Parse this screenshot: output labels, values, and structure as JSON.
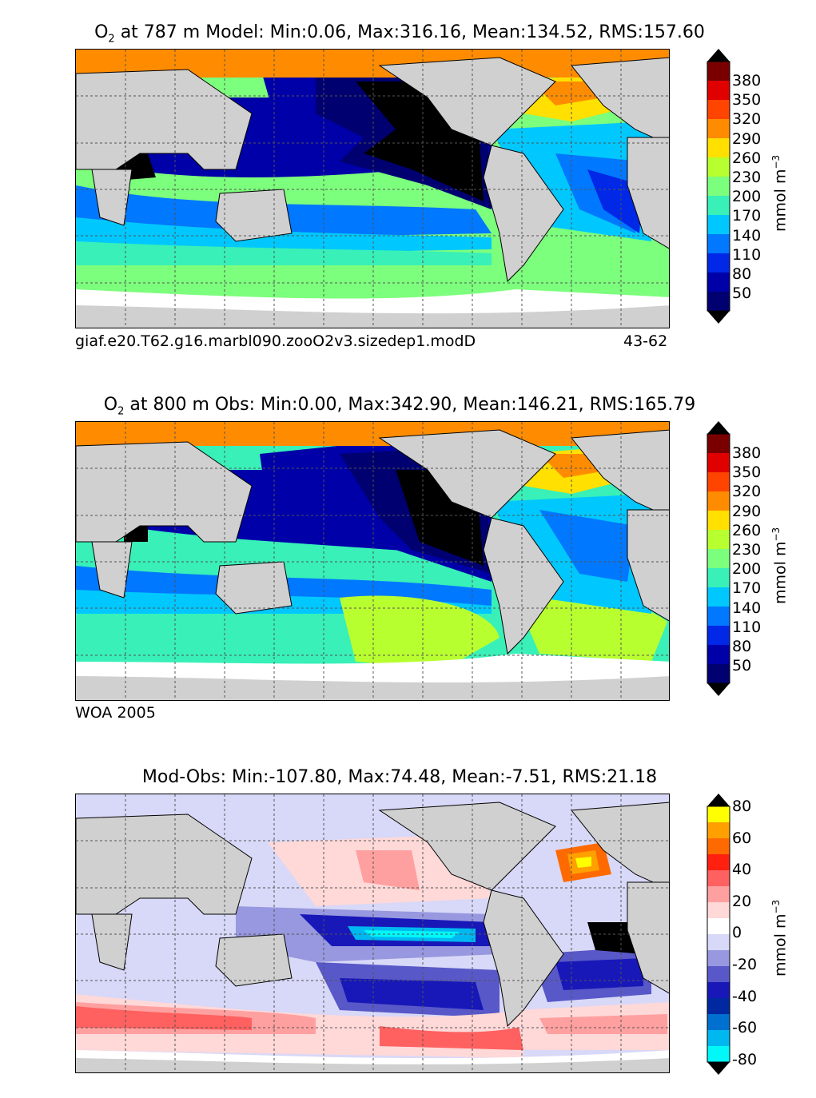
{
  "panels": [
    {
      "title_pre": "O",
      "title_sub": "2",
      "title_rest": " at 787 m Model: Min:0.06, Max:316.16, Mean:134.52, RMS:157.60",
      "caption_left": "giaf.e20.T62.g16.marbl090.zooO2v3.sizedep1.modD",
      "caption_right": "43-62"
    },
    {
      "title_pre": "O",
      "title_sub": "2",
      "title_rest": " at 800 m Obs: Min:0.00, Max:342.90, Mean:146.21, RMS:165.79",
      "caption_left": "WOA 2005",
      "caption_right": ""
    },
    {
      "title_pre": "",
      "title_sub": "",
      "title_rest": "Mod-Obs: Min:-107.80, Max:74.48, Mean:-7.51, RMS:21.18",
      "caption_left": "",
      "caption_right": ""
    }
  ],
  "colorbar_o2": {
    "unit": "mmol m",
    "unit_sup": "−3",
    "ticks": [
      "380",
      "350",
      "320",
      "290",
      "260",
      "230",
      "200",
      "170",
      "140",
      "110",
      "80",
      "50"
    ],
    "colors": [
      "#7a0000",
      "#e00000",
      "#ff4400",
      "#ff8c00",
      "#ffe000",
      "#b8ff30",
      "#7cff7c",
      "#38f0b8",
      "#00c8ff",
      "#0078ff",
      "#0028e6",
      "#0000a8",
      "#000070"
    ]
  },
  "colorbar_diff": {
    "unit": "mmol m",
    "unit_sup": "−3",
    "ticks": [
      "80",
      "60",
      "40",
      "20",
      "0",
      "-20",
      "-40",
      "-60",
      "-80"
    ],
    "colors": [
      "#ffff00",
      "#ffa000",
      "#ff6a00",
      "#ff2010",
      "#ff6060",
      "#ffa0a0",
      "#ffd8d8",
      "#ffffff",
      "#d8d8f8",
      "#9898e0",
      "#5858c8",
      "#1818b8",
      "#0028a0",
      "#0070d0",
      "#00b8f0",
      "#00f8f8"
    ]
  },
  "chart_data": [
    {
      "type": "heatmap",
      "title": "O2 at 787 m Model: Min:0.06, Max:316.16, Mean:134.52, RMS:157.60",
      "min": 0.06,
      "max": 316.16,
      "mean": 134.52,
      "rms": 157.6,
      "colorbar_ticks": [
        50,
        80,
        110,
        140,
        170,
        200,
        230,
        260,
        290,
        320,
        350,
        380
      ],
      "unit": "mmol m-3"
    },
    {
      "type": "heatmap",
      "title": "O2 at 800 m Obs: Min:0.00, Max:342.90, Mean:146.21, RMS:165.79",
      "min": 0.0,
      "max": 342.9,
      "mean": 146.21,
      "rms": 165.79,
      "colorbar_ticks": [
        50,
        80,
        110,
        140,
        170,
        200,
        230,
        260,
        290,
        320,
        350,
        380
      ],
      "unit": "mmol m-3"
    },
    {
      "type": "heatmap",
      "title": "Mod-Obs: Min:-107.80, Max:74.48, Mean:-7.51, RMS:21.18",
      "min": -107.8,
      "max": 74.48,
      "mean": -7.51,
      "rms": 21.18,
      "colorbar_ticks": [
        -80,
        -60,
        -40,
        -20,
        0,
        20,
        40,
        60,
        80
      ],
      "unit": "mmol m-3"
    }
  ]
}
